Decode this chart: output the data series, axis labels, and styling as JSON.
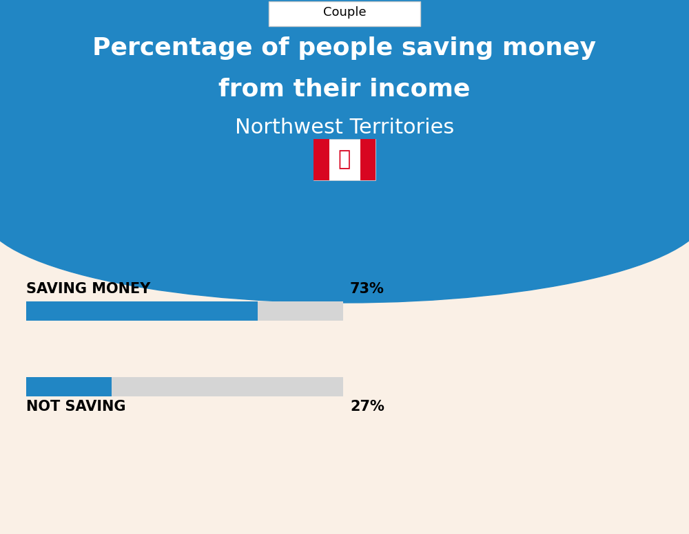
{
  "title_line1": "Percentage of people saving money",
  "title_line2": "from their income",
  "subtitle": "Northwest Territories",
  "tab_label": "Couple",
  "saving_label": "SAVING MONEY",
  "saving_value": 73,
  "saving_pct_text": "73%",
  "not_saving_label": "NOT SAVING",
  "not_saving_value": 27,
  "not_saving_pct_text": "27%",
  "blue_color": "#2186C4",
  "bar_blue": "#2186C4",
  "bar_gray": "#D5D5D5",
  "bg_color": "#FAF0E6",
  "white": "#FFFFFF",
  "black": "#000000",
  "fig_width": 10.0,
  "fig_height": 7.76
}
